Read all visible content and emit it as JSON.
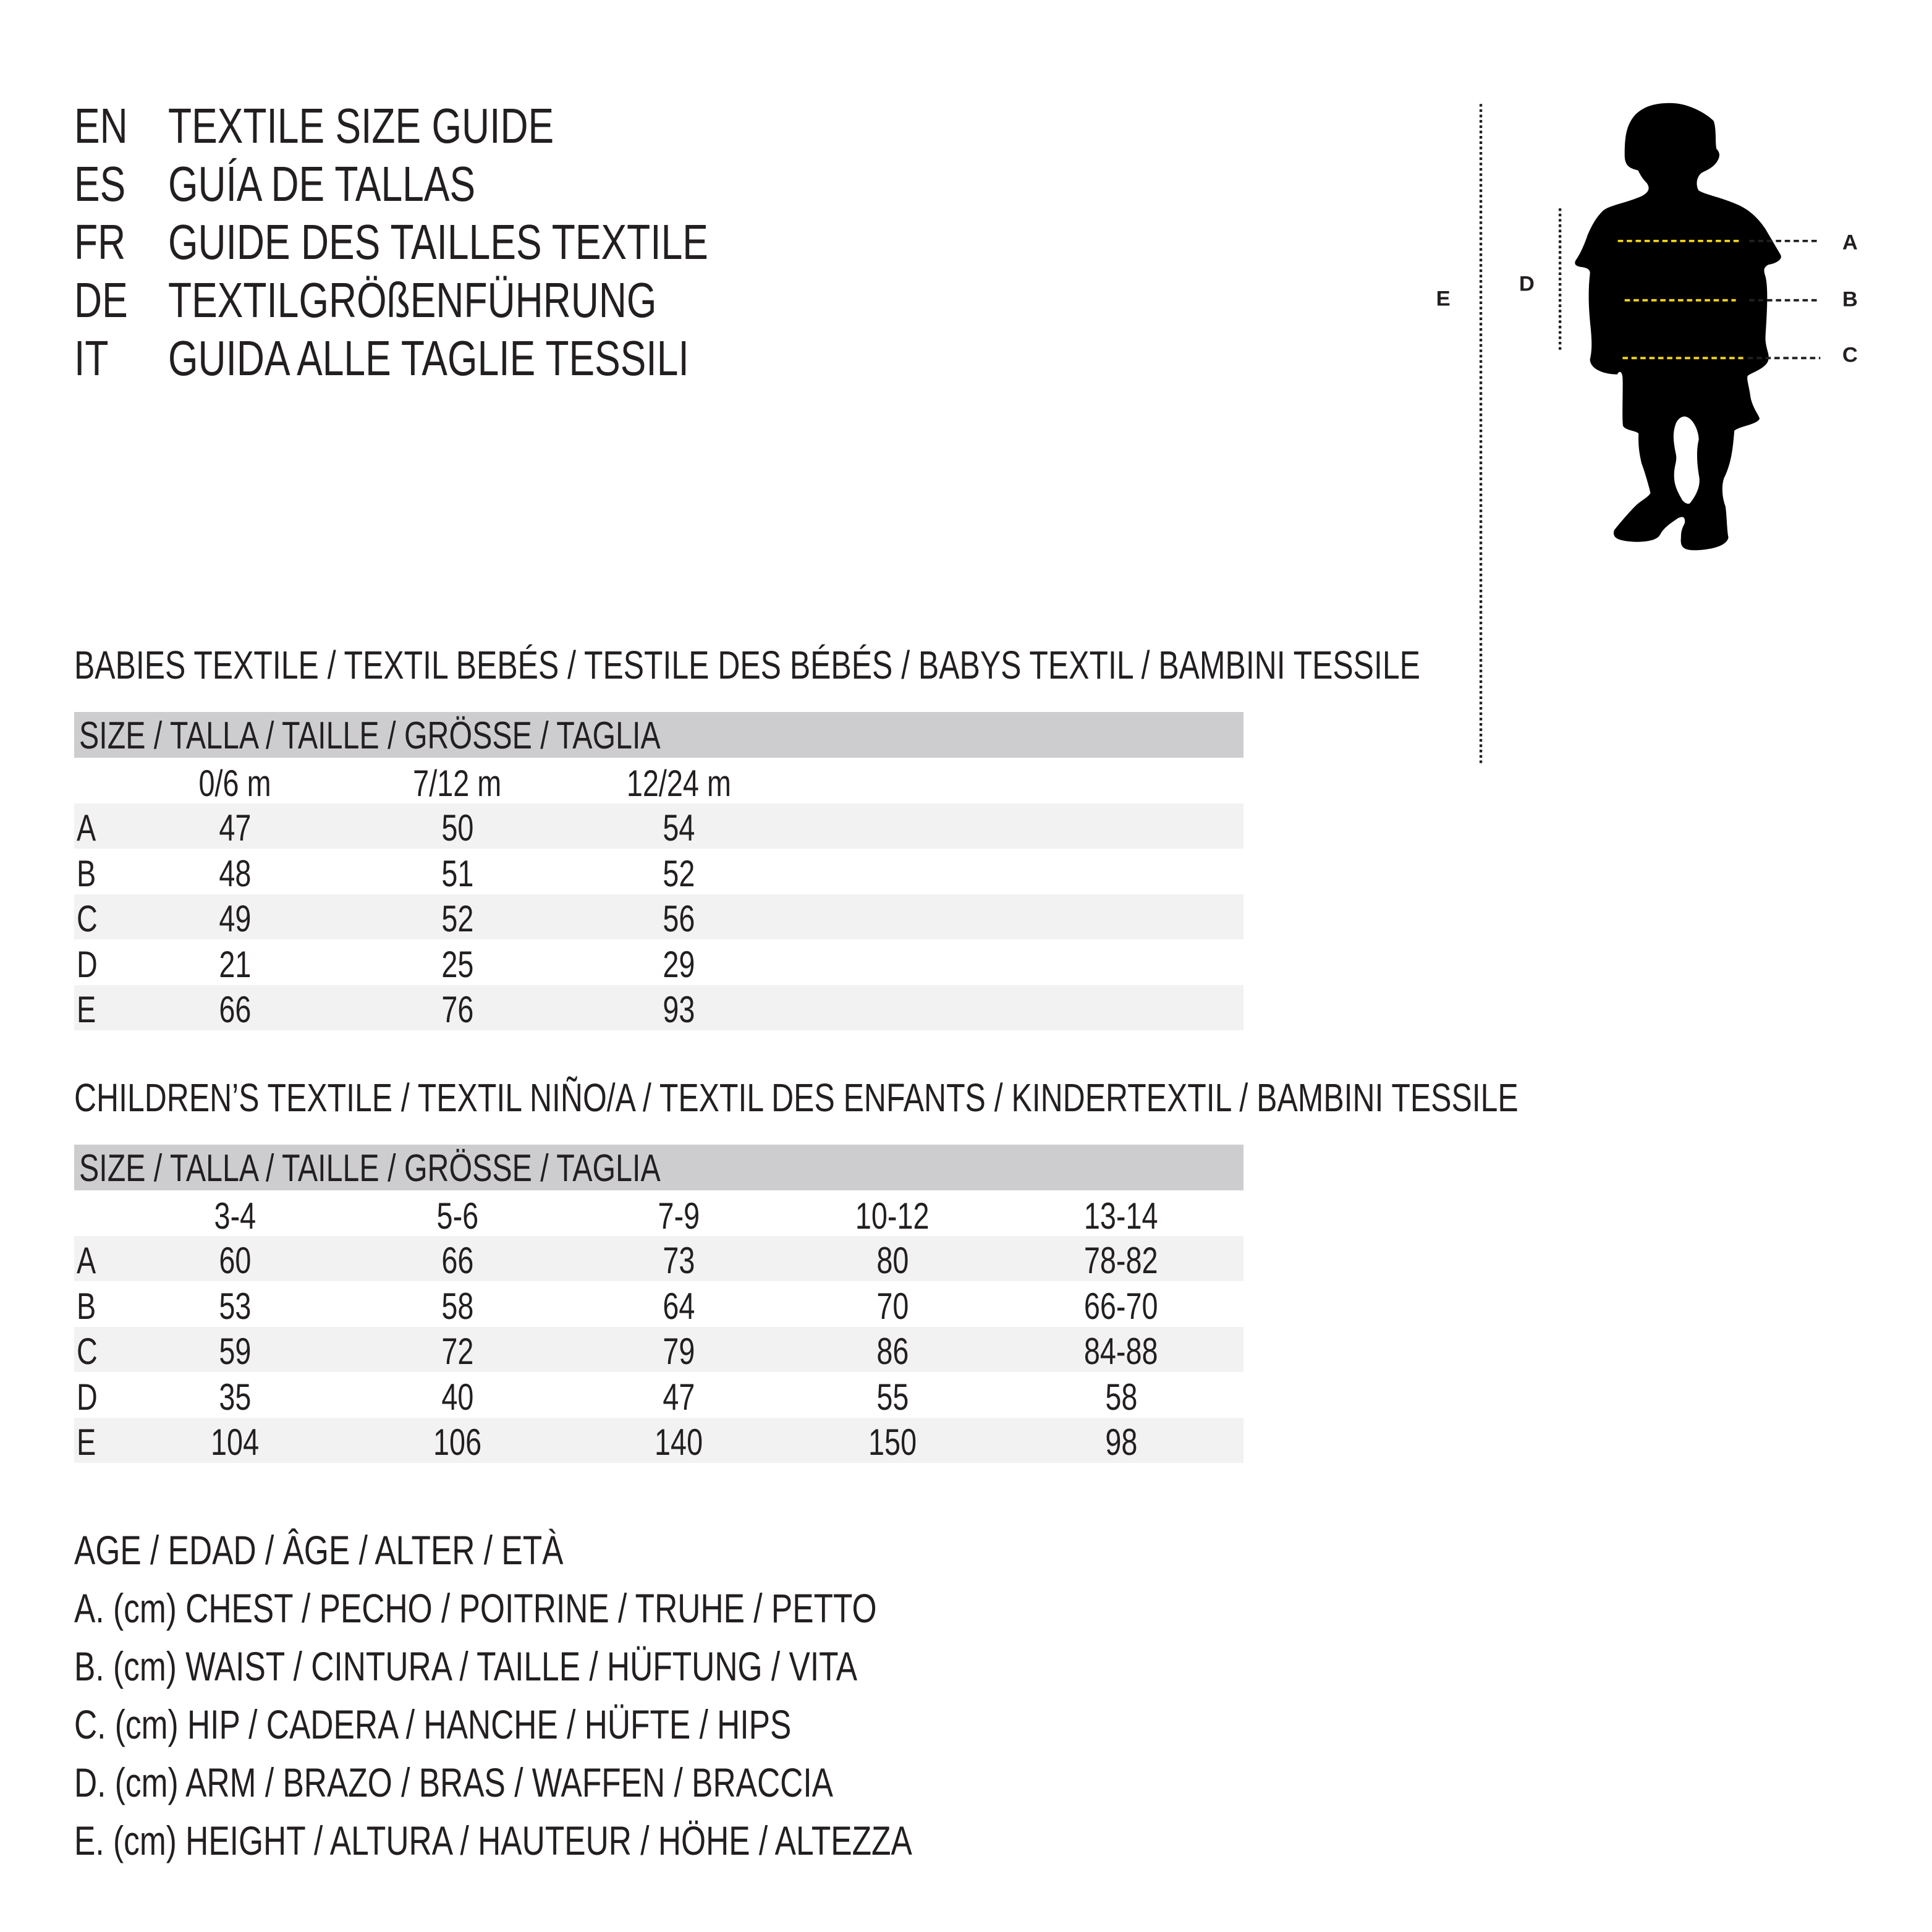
{
  "titles": [
    {
      "code": "EN",
      "text": "TEXTILE SIZE GUIDE"
    },
    {
      "code": "ES",
      "text": "GUÍA DE TALLAS"
    },
    {
      "code": "FR",
      "text": "GUIDE DES TAILLES TEXTILE"
    },
    {
      "code": "DE",
      "text": "TEXTILGRÖßENFÜHRUNG"
    },
    {
      "code": "IT",
      "text": "GUIDA ALLE TAGLIE TESSILI"
    }
  ],
  "figure": {
    "labels": {
      "A": "A",
      "B": "B",
      "C": "C",
      "D": "D",
      "E": "E"
    },
    "colors": {
      "measure_line": "#f2d21b",
      "guide_line": "#231f20",
      "silhouette": "#000000"
    }
  },
  "babies": {
    "heading": "BABIES TEXTILE / TEXTIL BEBÉS / TESTILE DES BÉBÉS / BABYS TEXTIL / BAMBINI TESSILE",
    "size_header": "SIZE / TALLA / TAILLE / GRÖSSE / TAGLIA",
    "columns": [
      "0/6 m",
      "7/12 m",
      "12/24 m"
    ],
    "rows": [
      {
        "label": "A",
        "values": [
          "47",
          "50",
          "54"
        ]
      },
      {
        "label": "B",
        "values": [
          "48",
          "51",
          "52"
        ]
      },
      {
        "label": "C",
        "values": [
          "49",
          "52",
          "56"
        ]
      },
      {
        "label": "D",
        "values": [
          "21",
          "25",
          "29"
        ]
      },
      {
        "label": "E",
        "values": [
          "66",
          "76",
          "93"
        ]
      }
    ]
  },
  "children": {
    "heading": "CHILDREN’S TEXTILE / TEXTIL NIÑO/A / TEXTIL DES ENFANTS / KINDERTEXTIL / BAMBINI TESSILE",
    "size_header": "SIZE / TALLA / TAILLE / GRÖSSE / TAGLIA",
    "columns": [
      "3-4",
      "5-6",
      "7-9",
      "10-12",
      "13-14"
    ],
    "rows": [
      {
        "label": "A",
        "values": [
          "60",
          "66",
          "73",
          "80",
          "78-82"
        ]
      },
      {
        "label": "B",
        "values": [
          "53",
          "58",
          "64",
          "70",
          "66-70"
        ]
      },
      {
        "label": "C",
        "values": [
          "59",
          "72",
          "79",
          "86",
          "84-88"
        ]
      },
      {
        "label": "D",
        "values": [
          "35",
          "40",
          "47",
          "55",
          "58"
        ]
      },
      {
        "label": "E",
        "values": [
          "104",
          "106",
          "140",
          "150",
          "98"
        ]
      }
    ]
  },
  "legend": [
    "AGE / EDAD / ÂGE / ALTER / ETÀ",
    "A. (cm) CHEST / PECHO / POITRINE / TRUHE / PETTO",
    "B. (cm) WAIST / CINTURA / TAILLE / HÜFTUNG / VITA",
    "C. (cm) HIP / CADERA / HANCHE / HÜFTE / HIPS",
    "D. (cm) ARM / BRAZO / BRAS / WAFFEN / BRACCIA",
    "E. (cm) HEIGHT / ALTURA / HAUTEUR / HÖHE / ALTEZZA"
  ]
}
